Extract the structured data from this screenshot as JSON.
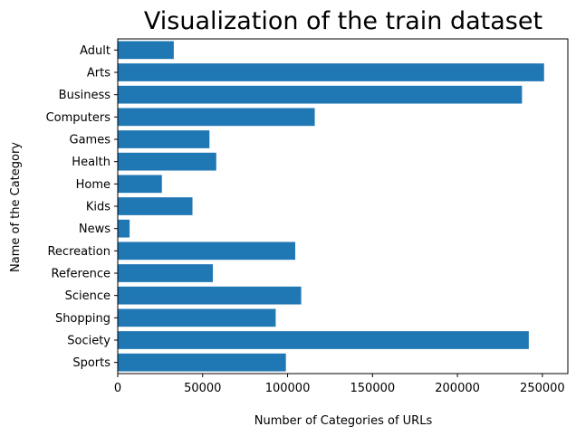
{
  "chart_data": {
    "type": "bar",
    "orientation": "horizontal",
    "title": "Visualization of the train dataset",
    "xlabel": "Number of Categories of URLs",
    "ylabel": "Name of the Category",
    "categories": [
      "Adult",
      "Arts",
      "Business",
      "Computers",
      "Games",
      "Health",
      "Home",
      "Kids",
      "News",
      "Recreation",
      "Reference",
      "Science",
      "Shopping",
      "Society",
      "Sports"
    ],
    "values": [
      33000,
      251000,
      238000,
      116000,
      54000,
      58000,
      26000,
      44000,
      7000,
      104500,
      56000,
      108000,
      93000,
      242000,
      99000
    ],
    "xlim": [
      0,
      265000
    ],
    "xticks": [
      0,
      50000,
      100000,
      150000,
      200000,
      250000
    ],
    "xtick_labels": [
      "0",
      "50000",
      "100000",
      "150000",
      "200000",
      "250000"
    ],
    "bar_color": "#1f77b4",
    "grid": false,
    "legend": "none"
  }
}
